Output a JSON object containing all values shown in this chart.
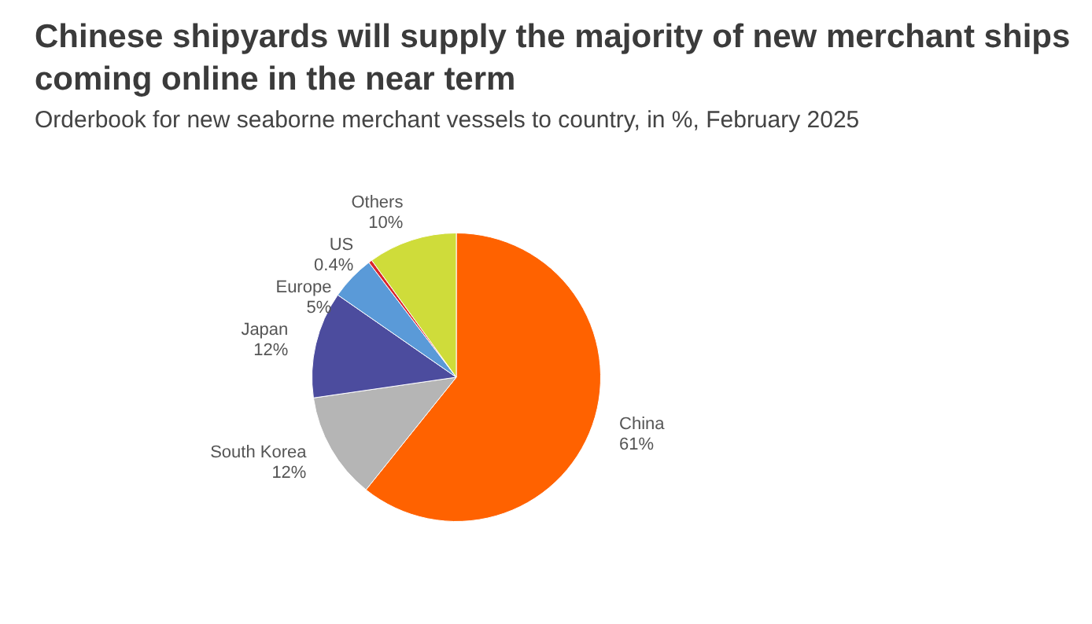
{
  "chart_data": {
    "type": "pie",
    "title": "Chinese shipyards will supply the majority of new merchant ships coming online in the near term",
    "subtitle": "Orderbook for new seaborne merchant vessels to country, in %, February 2025",
    "categories": [
      "China",
      "South Korea",
      "Japan",
      "Europe",
      "US",
      "Others"
    ],
    "values": [
      61,
      12,
      12,
      5,
      0.4,
      10
    ],
    "colors": [
      "#ff6200",
      "#b5b5b5",
      "#4c4c9e",
      "#5a9ad8",
      "#d9262c",
      "#cfdc3a"
    ],
    "value_labels": [
      "61%",
      "12%",
      "12%",
      "5%",
      "0.4%",
      "10%"
    ],
    "legend": false
  }
}
